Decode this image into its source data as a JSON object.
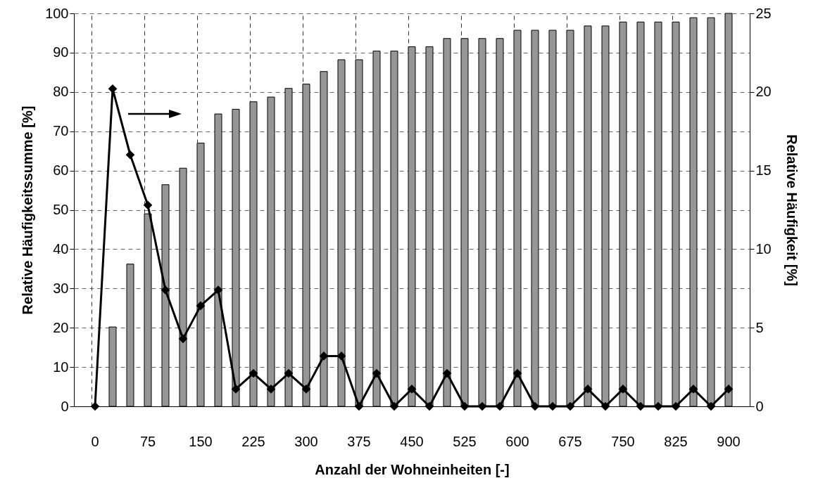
{
  "chart_data": {
    "type": "bar",
    "xlabel": "Anzahl der Wohneinheiten [-]",
    "ylabel": "Relative Häufigkeitssumme [%]",
    "y2label": "Relative Häufigkeit [%]",
    "categories": [
      "0",
      null,
      null,
      "75",
      null,
      null,
      "150",
      null,
      null,
      "225",
      null,
      null,
      "300",
      null,
      null,
      "375",
      null,
      null,
      "450",
      null,
      null,
      "525",
      null,
      null,
      "600",
      null,
      null,
      "675",
      null,
      null,
      "750",
      null,
      null,
      "825",
      null,
      null,
      "900"
    ],
    "series": [
      {
        "color": "#969696",
        "values": [
          null,
          20.2,
          36.2,
          49,
          56.4,
          60.6,
          67,
          74.4,
          75.6,
          77.5,
          78.7,
          80.9,
          82,
          85.2,
          88.2,
          88.2,
          90.4,
          90.4,
          91.5,
          91.5,
          93.6,
          93.6,
          93.6,
          93.6,
          95.7,
          95.7,
          95.7,
          95.7,
          96.8,
          96.8,
          97.8,
          97.8,
          97.8,
          97.8,
          98.9,
          98.9,
          100
        ]
      },
      {
        "type": "line",
        "axis": "y2",
        "color": "#000000",
        "values": [
          0,
          20.2,
          16,
          12.8,
          7.4,
          4.3,
          6.4,
          7.4,
          1.1,
          2.1,
          1.1,
          2.1,
          1.1,
          3.2,
          3.2,
          0,
          2.1,
          0,
          1.1,
          0,
          2.1,
          0,
          0,
          0,
          2.1,
          0,
          0,
          0,
          1.1,
          0,
          1.1,
          0,
          0,
          0,
          1.1,
          0,
          1.1
        ]
      }
    ],
    "ylim": [
      0,
      100
    ],
    "yticks": [
      0,
      10,
      20,
      30,
      40,
      50,
      60,
      70,
      80,
      90,
      100
    ],
    "y2lim": [
      0,
      25
    ],
    "y2ticks": [
      0,
      5,
      10,
      15,
      20,
      25
    ],
    "grid": true,
    "marker": "diamond",
    "line_style": "solid"
  }
}
